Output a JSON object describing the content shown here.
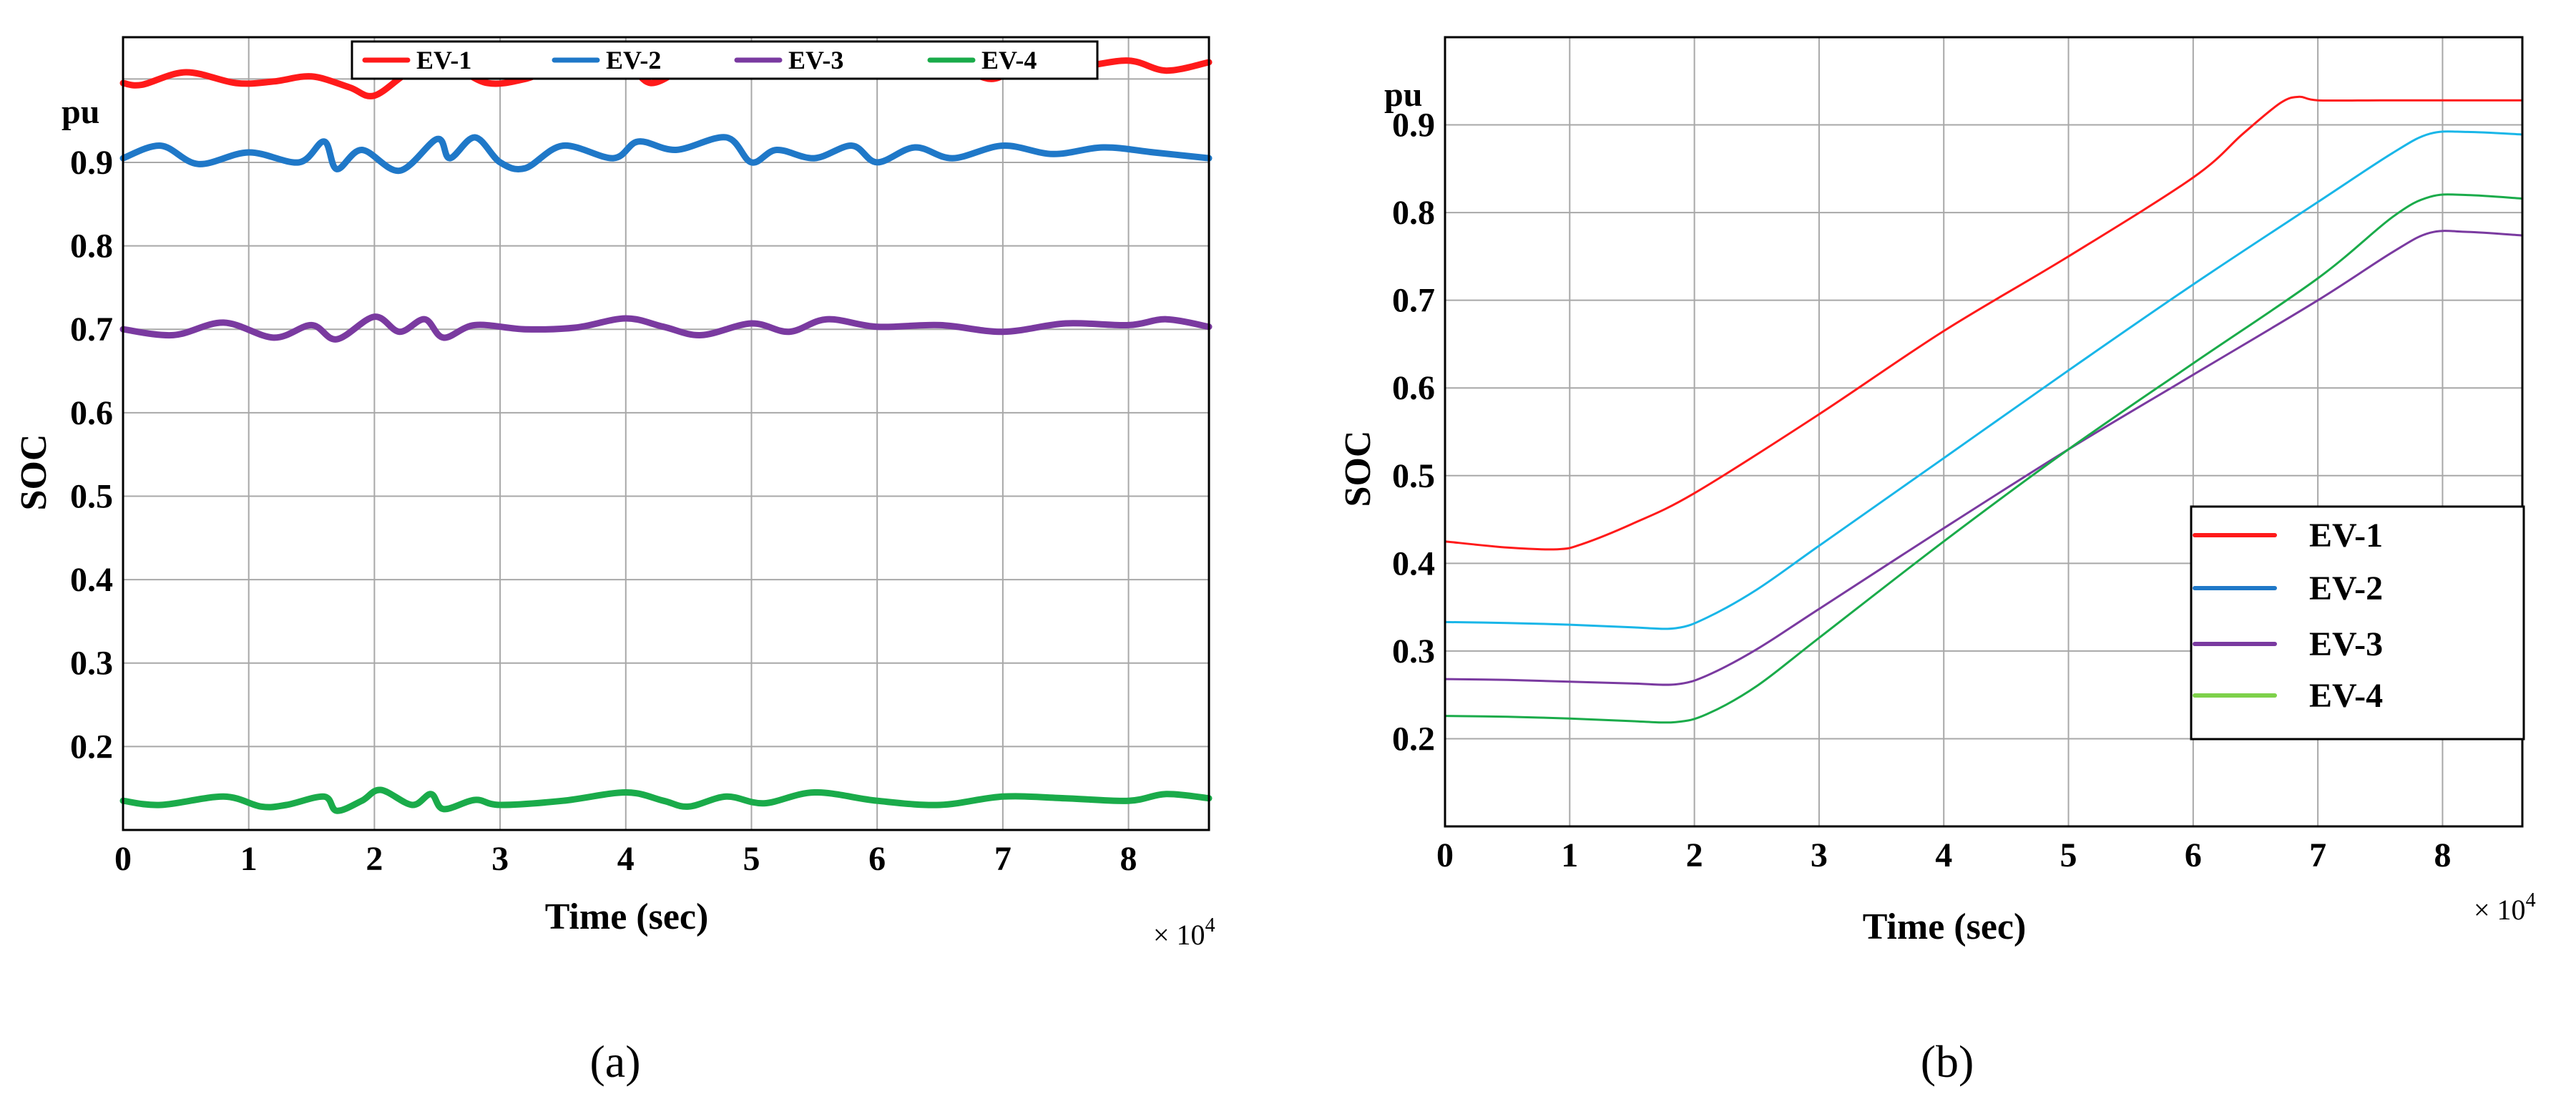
{
  "chart_data": [
    {
      "type": "line",
      "panel_label": "(a)",
      "xlabel": "Time (sec)",
      "ylabel": "SOC",
      "y_unit_label": "pu",
      "x_multiplier": "× 10",
      "x_multiplier_exp": "4",
      "xlim": [
        0,
        8.64
      ],
      "ylim": [
        0.1,
        1.05
      ],
      "grid": true,
      "legend_position": "top-center",
      "x_ticks": [
        "0",
        "1",
        "2",
        "3",
        "4",
        "5",
        "6",
        "7",
        "8"
      ],
      "y_ticks": [
        {
          "value": 0.2,
          "label": "0.2"
        },
        {
          "value": 0.3,
          "label": "0.3"
        },
        {
          "value": 0.4,
          "label": "0.4"
        },
        {
          "value": 0.5,
          "label": "0.5"
        },
        {
          "value": 0.6,
          "label": "0.6"
        },
        {
          "value": 0.7,
          "label": "0.7"
        },
        {
          "value": 0.8,
          "label": "0.8"
        },
        {
          "value": 0.9,
          "label": "0.9"
        }
      ],
      "series": [
        {
          "name": "EV-1",
          "color": "#ff1a1a",
          "x": [
            0,
            0.15,
            0.5,
            0.9,
            1.2,
            1.5,
            1.8,
            2.0,
            2.3,
            2.6,
            2.9,
            3.2,
            3.5,
            3.8,
            4.0,
            4.2,
            4.5,
            4.8,
            5.2,
            5.6,
            6.0,
            6.3,
            6.5,
            6.9,
            7.2,
            7.6,
            8.0,
            8.3,
            8.64
          ],
          "y": [
            0.995,
            0.993,
            1.008,
            0.995,
            0.997,
            1.003,
            0.99,
            0.98,
            1.01,
            1.015,
            0.995,
            1.0,
            1.015,
            1.005,
            1.02,
            0.995,
            1.015,
            1.02,
            1.005,
            1.012,
            1.015,
            1.005,
            1.025,
            1.0,
            1.02,
            1.015,
            1.022,
            1.01,
            1.02
          ]
        },
        {
          "name": "EV-2",
          "color": "#1f78c8",
          "x": [
            0,
            0.3,
            0.6,
            1.0,
            1.4,
            1.6,
            1.7,
            1.9,
            2.2,
            2.5,
            2.6,
            2.8,
            3.0,
            3.2,
            3.5,
            3.9,
            4.1,
            4.4,
            4.8,
            5.0,
            5.2,
            5.5,
            5.8,
            6.0,
            6.3,
            6.6,
            7.0,
            7.4,
            7.8,
            8.2,
            8.64
          ],
          "y": [
            0.905,
            0.92,
            0.898,
            0.912,
            0.9,
            0.925,
            0.892,
            0.915,
            0.89,
            0.928,
            0.905,
            0.93,
            0.9,
            0.893,
            0.92,
            0.905,
            0.925,
            0.915,
            0.93,
            0.9,
            0.915,
            0.905,
            0.92,
            0.9,
            0.918,
            0.905,
            0.92,
            0.91,
            0.918,
            0.912,
            0.905
          ]
        },
        {
          "name": "EV-3",
          "color": "#7a3aa0",
          "x": [
            0,
            0.4,
            0.8,
            1.2,
            1.5,
            1.7,
            2.0,
            2.2,
            2.4,
            2.55,
            2.8,
            3.2,
            3.6,
            4.0,
            4.3,
            4.6,
            5.0,
            5.3,
            5.6,
            6.0,
            6.5,
            7.0,
            7.5,
            8.0,
            8.3,
            8.64
          ],
          "y": [
            0.7,
            0.693,
            0.708,
            0.69,
            0.705,
            0.688,
            0.715,
            0.697,
            0.712,
            0.69,
            0.705,
            0.7,
            0.702,
            0.713,
            0.703,
            0.693,
            0.707,
            0.697,
            0.712,
            0.703,
            0.705,
            0.697,
            0.707,
            0.705,
            0.712,
            0.703
          ]
        },
        {
          "name": "EV-4",
          "color": "#1aab4a",
          "x": [
            0,
            0.3,
            0.8,
            1.1,
            1.3,
            1.6,
            1.7,
            1.9,
            2.05,
            2.3,
            2.45,
            2.55,
            2.8,
            3.0,
            3.5,
            4.0,
            4.3,
            4.5,
            4.8,
            5.1,
            5.5,
            6.0,
            6.5,
            7.0,
            7.5,
            8.0,
            8.3,
            8.64
          ],
          "y": [
            0.135,
            0.13,
            0.14,
            0.128,
            0.13,
            0.14,
            0.123,
            0.135,
            0.148,
            0.13,
            0.143,
            0.125,
            0.136,
            0.13,
            0.135,
            0.145,
            0.135,
            0.128,
            0.14,
            0.132,
            0.145,
            0.135,
            0.13,
            0.14,
            0.138,
            0.135,
            0.143,
            0.138
          ]
        }
      ]
    },
    {
      "type": "line",
      "panel_label": "(b)",
      "xlabel": "Time (sec)",
      "ylabel": "SOC",
      "y_unit_label": "pu",
      "x_multiplier": "× 10",
      "x_multiplier_exp": "4",
      "xlim": [
        0,
        8.64
      ],
      "ylim": [
        0.1,
        1.0
      ],
      "grid": true,
      "legend_position": "bottom-right",
      "x_ticks": [
        "0",
        "1",
        "2",
        "3",
        "4",
        "5",
        "6",
        "7",
        "8"
      ],
      "y_ticks": [
        {
          "value": 0.2,
          "label": "0.2"
        },
        {
          "value": 0.3,
          "label": "0.3"
        },
        {
          "value": 0.4,
          "label": "0.4"
        },
        {
          "value": 0.5,
          "label": "0.5"
        },
        {
          "value": 0.6,
          "label": "0.6"
        },
        {
          "value": 0.7,
          "label": "0.7"
        },
        {
          "value": 0.8,
          "label": "0.8"
        },
        {
          "value": 0.9,
          "label": "0.9"
        }
      ],
      "series": [
        {
          "name": "EV-1",
          "color": "#ff1a1a",
          "legend_color": "#ff1a1a",
          "x": [
            0,
            0.5,
            0.9,
            1.1,
            1.5,
            2.0,
            3.0,
            4.0,
            5.0,
            6.0,
            6.4,
            6.7,
            6.85,
            7.0,
            7.5,
            8.0,
            8.64
          ],
          "y": [
            0.425,
            0.418,
            0.416,
            0.422,
            0.445,
            0.48,
            0.57,
            0.665,
            0.75,
            0.84,
            0.89,
            0.925,
            0.932,
            0.928,
            0.928,
            0.928,
            0.928
          ]
        },
        {
          "name": "EV-2",
          "color": "#19b6e8",
          "legend_color": "#1f78c8",
          "x": [
            0,
            0.5,
            1.0,
            1.5,
            1.85,
            2.1,
            2.5,
            3.0,
            4.0,
            5.0,
            6.0,
            7.0,
            7.6,
            7.9,
            8.2,
            8.64
          ],
          "y": [
            0.333,
            0.332,
            0.33,
            0.327,
            0.326,
            0.338,
            0.37,
            0.42,
            0.52,
            0.62,
            0.718,
            0.812,
            0.868,
            0.89,
            0.892,
            0.889
          ]
        },
        {
          "name": "EV-3",
          "color": "#7a3aa0",
          "legend_color": "#7a3aa0",
          "x": [
            0,
            0.5,
            1.0,
            1.5,
            1.85,
            2.1,
            2.5,
            3.0,
            4.0,
            5.0,
            6.0,
            7.0,
            7.6,
            7.9,
            8.2,
            8.64
          ],
          "y": [
            0.268,
            0.267,
            0.265,
            0.263,
            0.262,
            0.272,
            0.302,
            0.348,
            0.44,
            0.53,
            0.615,
            0.7,
            0.755,
            0.777,
            0.778,
            0.774
          ]
        },
        {
          "name": "EV-4",
          "color": "#1aab4a",
          "legend_color": "#7ed14a",
          "x": [
            0,
            0.5,
            1.0,
            1.5,
            1.85,
            2.1,
            2.5,
            3.0,
            4.0,
            5.0,
            6.0,
            7.0,
            7.6,
            7.9,
            8.2,
            8.64
          ],
          "y": [
            0.226,
            0.225,
            0.223,
            0.22,
            0.219,
            0.228,
            0.26,
            0.315,
            0.425,
            0.53,
            0.628,
            0.725,
            0.795,
            0.818,
            0.82,
            0.816
          ]
        }
      ]
    }
  ]
}
